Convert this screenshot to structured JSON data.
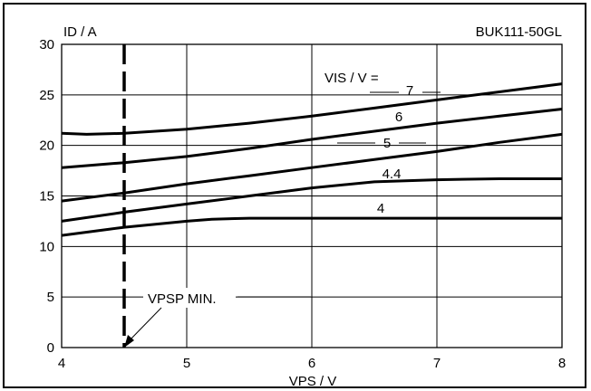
{
  "chart_data": {
    "type": "line",
    "title": "",
    "part_number": "BUK111-50GL",
    "xlabel": "VPS / V",
    "ylabel": "ID / A",
    "xlim": [
      4,
      8
    ],
    "ylim": [
      0,
      30
    ],
    "xticks": [
      4,
      5,
      6,
      7,
      8
    ],
    "yticks": [
      0,
      5,
      10,
      15,
      20,
      25,
      30
    ],
    "grid": true,
    "legend_title": "VIS / V =",
    "series": [
      {
        "name": "7",
        "x": [
          4,
          4.2,
          4.5,
          5,
          5.5,
          6,
          6.5,
          7,
          7.5,
          8
        ],
        "y": [
          21.2,
          21.1,
          21.2,
          21.6,
          22.2,
          22.9,
          23.7,
          24.5,
          25.3,
          26.1
        ]
      },
      {
        "name": "6",
        "x": [
          4,
          4.5,
          5,
          5.5,
          6,
          6.5,
          7,
          7.5,
          8
        ],
        "y": [
          17.8,
          18.3,
          18.9,
          19.7,
          20.6,
          21.4,
          22.2,
          22.9,
          23.6
        ]
      },
      {
        "name": "5",
        "x": [
          4,
          4.5,
          5,
          5.5,
          6,
          6.5,
          7,
          7.5,
          8
        ],
        "y": [
          14.5,
          15.3,
          16.2,
          17.0,
          17.8,
          18.6,
          19.4,
          20.3,
          21.1
        ]
      },
      {
        "name": "4.4",
        "x": [
          4,
          4.5,
          5,
          5.5,
          6,
          6.5,
          7,
          7.5,
          8
        ],
        "y": [
          12.5,
          13.4,
          14.2,
          15.0,
          15.8,
          16.4,
          16.6,
          16.7,
          16.7
        ]
      },
      {
        "name": "4",
        "x": [
          4,
          4.5,
          5,
          5.2,
          5.5,
          6,
          7,
          8
        ],
        "y": [
          11.1,
          11.9,
          12.5,
          12.7,
          12.8,
          12.8,
          12.8,
          12.8
        ]
      }
    ],
    "annotations": [
      {
        "text": "VPSP MIN.",
        "x": 4.5
      }
    ]
  }
}
